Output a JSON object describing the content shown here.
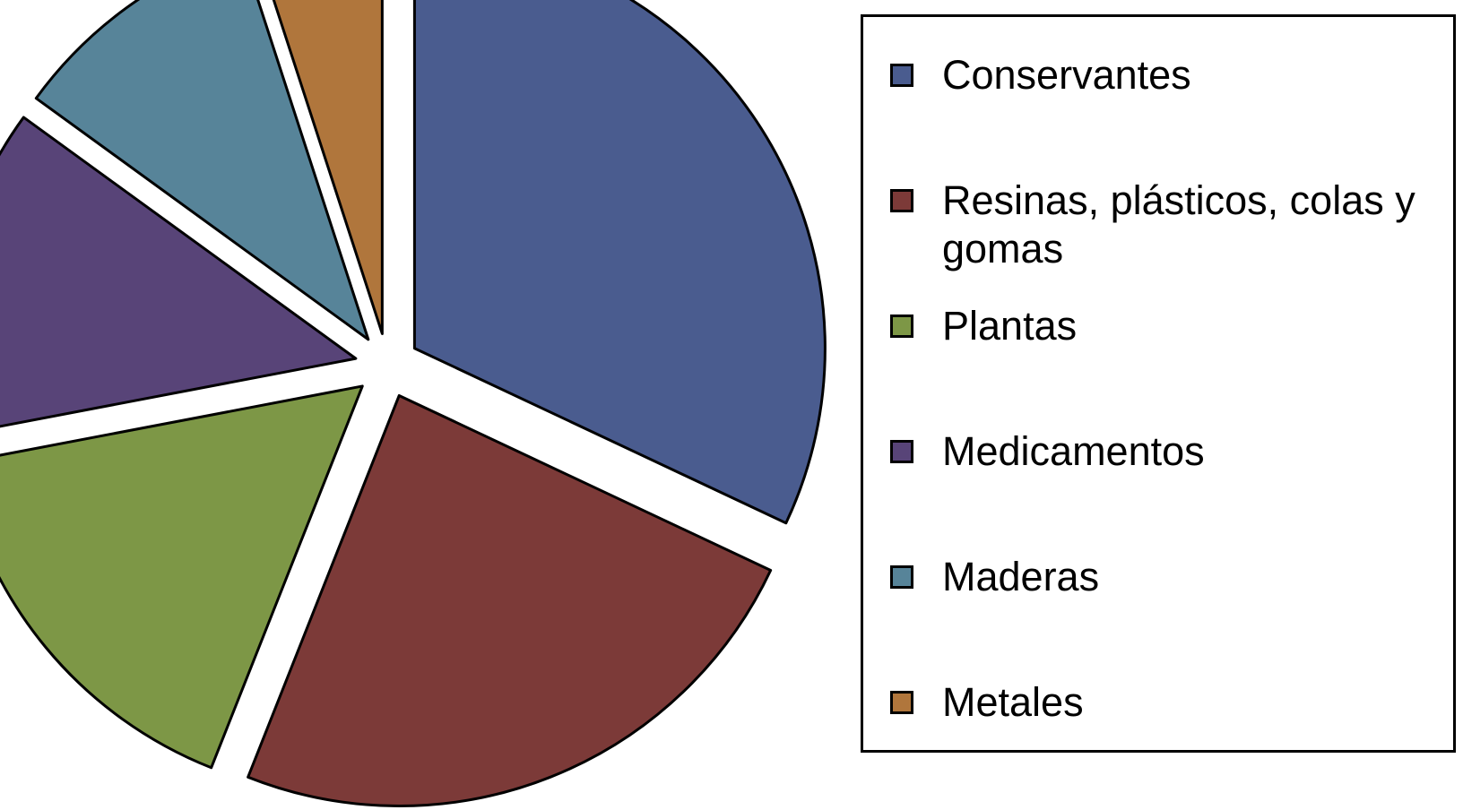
{
  "chart_data": {
    "type": "pie",
    "exploded": true,
    "legend_position": "right",
    "slices": [
      {
        "name": "Conservantes",
        "value": 32,
        "color": "#4a5c8f"
      },
      {
        "name": "Resinas, plásticos, colas y gomas",
        "value": 24,
        "color": "#7c3a38"
      },
      {
        "name": "Plantas",
        "value": 16,
        "color": "#7d9746"
      },
      {
        "name": "Medicamentos",
        "value": 13,
        "color": "#584478"
      },
      {
        "name": "Maderas",
        "value": 10,
        "color": "#578499"
      },
      {
        "name": "Metales",
        "value": 5,
        "color": "#b0763c"
      }
    ]
  }
}
